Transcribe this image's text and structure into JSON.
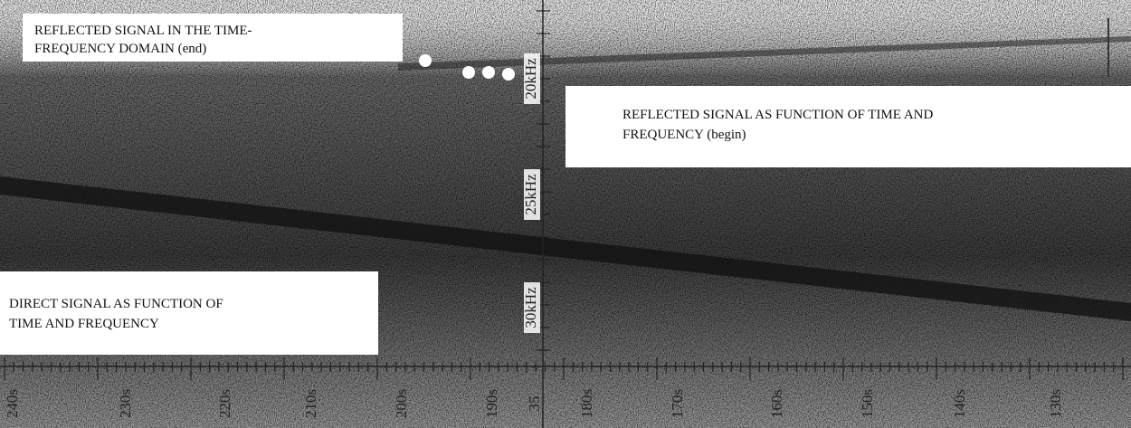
{
  "annotations": [
    {
      "lines": [
        "REFLECTED SIGNAL IN THE TIME-",
        "FREQUENCY DOMAIN (end)"
      ]
    },
    {
      "lines": [
        "REFLECTED SIGNAL AS FUNCTION OF TIME AND",
        "FREQUENCY (begin)"
      ]
    },
    {
      "lines": [
        "DIRECT SIGNAL AS FUNCTION OF",
        "TIME AND FREQUENCY"
      ]
    }
  ],
  "frequency_labels": [
    "20kHz",
    "25kHz",
    "30kHz"
  ],
  "time_labels": [
    "240s",
    "230s",
    "220s",
    "210s",
    "200s",
    "190s",
    "35",
    "180s",
    "170s",
    "160s",
    "150s",
    "140s",
    "130s"
  ]
}
